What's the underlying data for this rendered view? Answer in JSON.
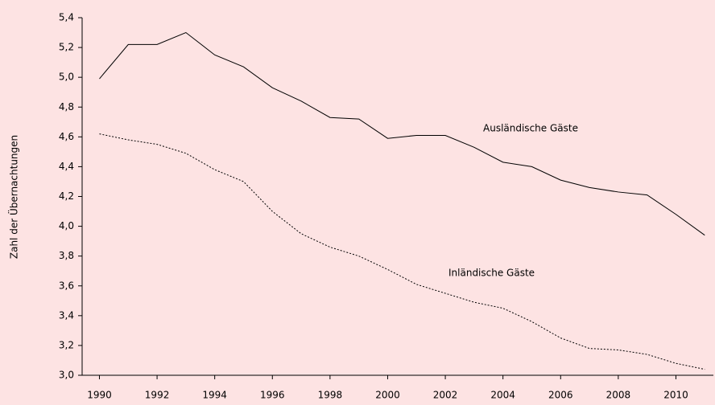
{
  "chart_data": {
    "type": "line",
    "y_label": "Zahl der Übernachtungen",
    "x": [
      1990,
      1991,
      1992,
      1993,
      1994,
      1995,
      1996,
      1997,
      1998,
      1999,
      2000,
      2001,
      2002,
      2003,
      2004,
      2005,
      2006,
      2007,
      2008,
      2009,
      2010,
      2011
    ],
    "series": [
      {
        "name": "Ausländische Gäste",
        "color": "#000000",
        "dash": "solid",
        "values": [
          4.99,
          5.22,
          5.22,
          5.3,
          5.15,
          5.07,
          4.93,
          4.84,
          4.73,
          4.72,
          4.59,
          4.61,
          4.61,
          4.53,
          4.43,
          4.4,
          4.31,
          4.26,
          4.23,
          4.21,
          4.08,
          3.94
        ]
      },
      {
        "name": "Inländische Gäste",
        "color": "#000000",
        "dash": "dotted",
        "values": [
          4.62,
          4.58,
          4.55,
          4.49,
          4.38,
          4.3,
          4.1,
          3.95,
          3.86,
          3.8,
          3.71,
          3.61,
          3.55,
          3.49,
          3.45,
          3.36,
          3.25,
          3.18,
          3.17,
          3.14,
          3.08,
          3.04
        ]
      }
    ],
    "xlim": [
      1989.4,
      2011.3
    ],
    "xticks": [
      1990,
      1992,
      1994,
      1996,
      1998,
      2000,
      2002,
      2004,
      2006,
      2008,
      2010
    ],
    "ylim": [
      3.0,
      5.4
    ],
    "yticks": [
      {
        "value": 3.0,
        "label": "3,0"
      },
      {
        "value": 3.2,
        "label": "3,2"
      },
      {
        "value": 3.4,
        "label": "3,4"
      },
      {
        "value": 3.6,
        "label": "3,6"
      },
      {
        "value": 3.8,
        "label": "3,8"
      },
      {
        "value": 4.0,
        "label": "4,0"
      },
      {
        "value": 4.2,
        "label": "4,2"
      },
      {
        "value": 4.4,
        "label": "4,4"
      },
      {
        "value": 4.6,
        "label": "4,6"
      },
      {
        "value": 4.8,
        "label": "4,8"
      },
      {
        "value": 5.0,
        "label": "5,0"
      },
      {
        "value": 5.2,
        "label": "5,2"
      },
      {
        "value": 5.4,
        "label": "5,4"
      }
    ],
    "grid": false
  }
}
